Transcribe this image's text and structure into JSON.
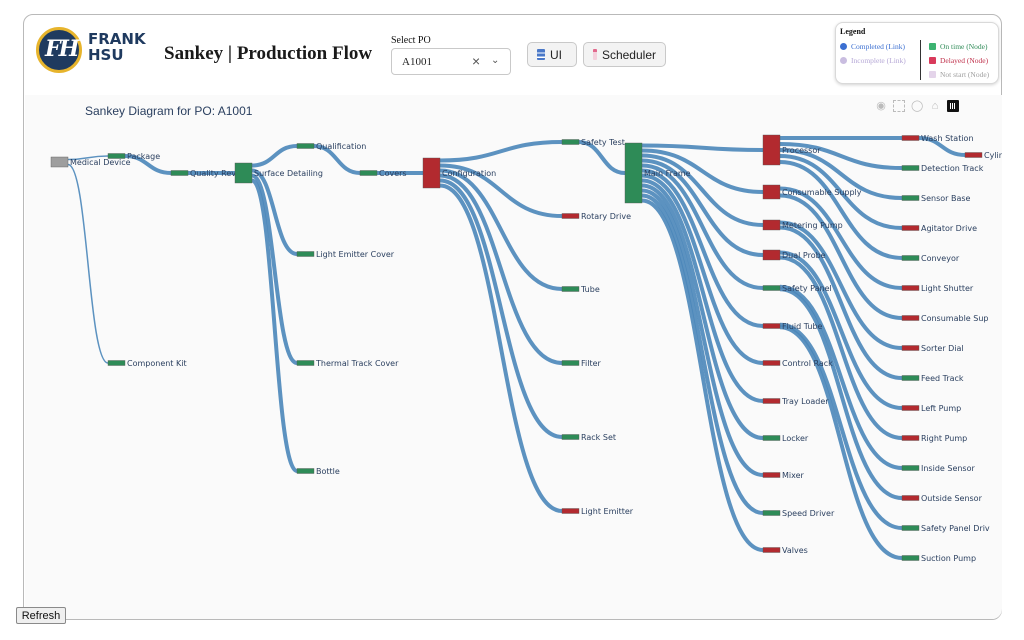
{
  "header": {
    "logo_text_line1": "FRANK",
    "logo_text_line2": "HSU",
    "logo_mark": "FH",
    "title": "Sankey | Production Flow",
    "po_label": "Select PO",
    "po_value": "A1001",
    "buttons": {
      "ui": "UI",
      "scheduler": "Scheduler"
    }
  },
  "legend": {
    "title": "Legend",
    "completed": "Completed (Link)",
    "incomplete": "Incomplete (Link)",
    "on_time": "On time (Node)",
    "delayed": "Delayed (Node)",
    "not_start": "Not start (Node)"
  },
  "chart": {
    "title": "Sankey Diagram for PO: A1001"
  },
  "colors": {
    "link": "#4a86b9",
    "on_time": "#2e8b57",
    "delayed": "#b22a2f",
    "not_start": "#9e9e9e",
    "completed": "#3b6fd1",
    "incomplete": "#c9bde0"
  },
  "chart_data": {
    "type": "sankey",
    "nodes": [
      {
        "id": "Medical Device",
        "status": "not_start"
      },
      {
        "id": "Package",
        "status": "on_time"
      },
      {
        "id": "Component Kit",
        "status": "on_time"
      },
      {
        "id": "Quality Rev",
        "status": "on_time"
      },
      {
        "id": "Surface Detailing",
        "status": "on_time"
      },
      {
        "id": "Qualification",
        "status": "on_time"
      },
      {
        "id": "Light Emitter Cover",
        "status": "on_time"
      },
      {
        "id": "Thermal Track Cover",
        "status": "on_time"
      },
      {
        "id": "Bottle",
        "status": "on_time"
      },
      {
        "id": "Covers",
        "status": "on_time"
      },
      {
        "id": "Configuration",
        "status": "delayed"
      },
      {
        "id": "Safety Test",
        "status": "on_time"
      },
      {
        "id": "Rotary Drive",
        "status": "delayed"
      },
      {
        "id": "Tube",
        "status": "on_time"
      },
      {
        "id": "Filter",
        "status": "on_time"
      },
      {
        "id": "Rack Set",
        "status": "on_time"
      },
      {
        "id": "Light Emitter",
        "status": "delayed"
      },
      {
        "id": "Main Frame",
        "status": "on_time"
      },
      {
        "id": "Processor",
        "status": "delayed"
      },
      {
        "id": "Consumable Supply",
        "status": "delayed"
      },
      {
        "id": "Metering Pump",
        "status": "delayed"
      },
      {
        "id": "Dual Probe",
        "status": "delayed"
      },
      {
        "id": "Safety Panel",
        "status": "on_time"
      },
      {
        "id": "Fluid Tube",
        "status": "delayed"
      },
      {
        "id": "Control Rack",
        "status": "delayed"
      },
      {
        "id": "Tray Loader",
        "status": "delayed"
      },
      {
        "id": "Locker",
        "status": "on_time"
      },
      {
        "id": "Mixer",
        "status": "delayed"
      },
      {
        "id": "Speed Driver",
        "status": "on_time"
      },
      {
        "id": "Valves",
        "status": "delayed"
      },
      {
        "id": "Wash Station",
        "status": "delayed"
      },
      {
        "id": "Cylinder",
        "status": "delayed"
      },
      {
        "id": "Detection Track",
        "status": "on_time"
      },
      {
        "id": "Sensor Base",
        "status": "on_time"
      },
      {
        "id": "Agitator Drive",
        "status": "delayed"
      },
      {
        "id": "Conveyor",
        "status": "on_time"
      },
      {
        "id": "Light Shutter",
        "status": "delayed"
      },
      {
        "id": "Consumable Sup",
        "status": "delayed"
      },
      {
        "id": "Sorter Dial",
        "status": "delayed"
      },
      {
        "id": "Feed Track",
        "status": "on_time"
      },
      {
        "id": "Left Pump",
        "status": "delayed"
      },
      {
        "id": "Right Pump",
        "status": "delayed"
      },
      {
        "id": "Inside Sensor",
        "status": "on_time"
      },
      {
        "id": "Outside Sensor",
        "status": "delayed"
      },
      {
        "id": "Safety Panel Driv",
        "status": "on_time"
      },
      {
        "id": "Suction Pump",
        "status": "on_time"
      }
    ],
    "links": [
      [
        "Medical Device",
        "Package"
      ],
      [
        "Medical Device",
        "Component Kit"
      ],
      [
        "Package",
        "Quality Rev"
      ],
      [
        "Quality Rev",
        "Surface Detailing"
      ],
      [
        "Surface Detailing",
        "Qualification"
      ],
      [
        "Surface Detailing",
        "Light Emitter Cover"
      ],
      [
        "Surface Detailing",
        "Thermal Track Cover"
      ],
      [
        "Surface Detailing",
        "Bottle"
      ],
      [
        "Qualification",
        "Covers"
      ],
      [
        "Covers",
        "Configuration"
      ],
      [
        "Configuration",
        "Safety Test"
      ],
      [
        "Configuration",
        "Rotary Drive"
      ],
      [
        "Configuration",
        "Tube"
      ],
      [
        "Configuration",
        "Filter"
      ],
      [
        "Configuration",
        "Rack Set"
      ],
      [
        "Configuration",
        "Light Emitter"
      ],
      [
        "Safety Test",
        "Main Frame"
      ],
      [
        "Main Frame",
        "Processor"
      ],
      [
        "Main Frame",
        "Consumable Supply"
      ],
      [
        "Main Frame",
        "Metering Pump"
      ],
      [
        "Main Frame",
        "Dual Probe"
      ],
      [
        "Main Frame",
        "Safety Panel"
      ],
      [
        "Main Frame",
        "Fluid Tube"
      ],
      [
        "Main Frame",
        "Control Rack"
      ],
      [
        "Main Frame",
        "Tray Loader"
      ],
      [
        "Main Frame",
        "Locker"
      ],
      [
        "Main Frame",
        "Mixer"
      ],
      [
        "Main Frame",
        "Speed Driver"
      ],
      [
        "Main Frame",
        "Valves"
      ],
      [
        "Processor",
        "Wash Station"
      ],
      [
        "Wash Station",
        "Cylinder"
      ],
      [
        "Processor",
        "Detection Track"
      ],
      [
        "Processor",
        "Sensor Base"
      ],
      [
        "Processor",
        "Agitator Drive"
      ],
      [
        "Processor",
        "Conveyor"
      ],
      [
        "Consumable Supply",
        "Light Shutter"
      ],
      [
        "Consumable Supply",
        "Consumable Sup"
      ],
      [
        "Metering Pump",
        "Sorter Dial"
      ],
      [
        "Metering Pump",
        "Feed Track"
      ],
      [
        "Dual Probe",
        "Left Pump"
      ],
      [
        "Dual Probe",
        "Right Pump"
      ],
      [
        "Safety Panel",
        "Inside Sensor"
      ],
      [
        "Safety Panel",
        "Outside Sensor"
      ],
      [
        "Fluid Tube",
        "Safety Panel Driv"
      ],
      [
        "Fluid Tube",
        "Suction Pump"
      ]
    ]
  },
  "footer": {
    "refresh": "Refresh"
  }
}
